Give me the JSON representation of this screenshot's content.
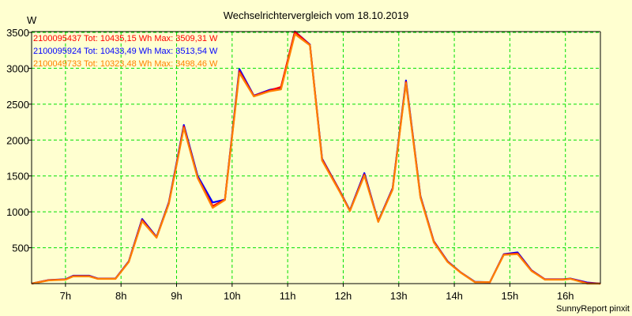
{
  "chart_data": {
    "type": "line",
    "title": "Wechselrichtervergleich vom 18.10.2019",
    "ylabel": "W",
    "xlabel": "",
    "footer": "SunnyReport pinxit",
    "ylim": [
      0,
      3500
    ],
    "xlim": [
      6.39,
      16.63
    ],
    "grid": true,
    "legend_position": "top-left",
    "yticks": [
      500,
      1000,
      1500,
      2000,
      2500,
      3000,
      3500
    ],
    "ytick_labels": [
      "500",
      "1000",
      "1500",
      "2000",
      "2500",
      "3000",
      "3500"
    ],
    "xticks": [
      7,
      8,
      9,
      10,
      11,
      12,
      13,
      14,
      15,
      16
    ],
    "xtick_labels": [
      "7h",
      "8h",
      "9h",
      "10h",
      "11h",
      "12h",
      "13h",
      "14h",
      "15h",
      "16h"
    ],
    "x": [
      6.39,
      6.7,
      7.0,
      7.14,
      7.43,
      7.58,
      7.9,
      8.14,
      8.38,
      8.64,
      8.86,
      9.01,
      9.13,
      9.38,
      9.65,
      9.87,
      10.13,
      10.39,
      10.68,
      10.88,
      11.13,
      11.4,
      11.62,
      11.94,
      12.12,
      12.38,
      12.63,
      12.89,
      13.13,
      13.39,
      13.63,
      13.88,
      14.11,
      14.37,
      14.64,
      14.89,
      15.14,
      15.39,
      15.63,
      15.96,
      16.09,
      16.39,
      16.63
    ],
    "series": [
      {
        "name": "2100095924",
        "legend": "2100095924 Tot: 10433,49 Wh Max: 3513,54 W",
        "color": "#0000ff",
        "values": [
          0,
          50,
          60,
          110,
          110,
          70,
          70,
          310,
          900,
          650,
          1130,
          1720,
          2210,
          1500,
          1130,
          1170,
          2990,
          2620,
          2700,
          2730,
          3513,
          3330,
          1740,
          1290,
          1020,
          1540,
          870,
          1330,
          2830,
          1220,
          590,
          310,
          160,
          25,
          20,
          410,
          435,
          185,
          60,
          60,
          70,
          15,
          0
        ]
      },
      {
        "name": "2100095437",
        "legend": "2100095437 Tot: 10435,15 Wh Max: 3509,31 W",
        "color": "#ff0000",
        "values": [
          0,
          48,
          58,
          105,
          105,
          68,
          68,
          305,
          885,
          645,
          1120,
          1700,
          2190,
          1480,
          1080,
          1170,
          2960,
          2615,
          2690,
          2740,
          3509,
          3325,
          1730,
          1285,
          1015,
          1520,
          865,
          1320,
          2810,
          1210,
          585,
          305,
          158,
          22,
          20,
          405,
          420,
          180,
          58,
          58,
          68,
          8,
          0
        ]
      },
      {
        "name": "2100049733",
        "legend": "2100049733 Tot: 10323,48 Wh Max: 3498,46 W",
        "color": "#ff8000",
        "values": [
          0,
          45,
          55,
          100,
          100,
          66,
          66,
          300,
          870,
          640,
          1110,
          1690,
          2170,
          1470,
          1055,
          1165,
          2935,
          2607,
          2680,
          2705,
          3475,
          3320,
          1715,
          1275,
          1010,
          1505,
          860,
          1310,
          2795,
          1200,
          575,
          300,
          155,
          20,
          20,
          400,
          410,
          175,
          55,
          55,
          66,
          0,
          0
        ]
      }
    ],
    "legend_order": [
      1,
      0,
      2
    ]
  },
  "colors": {
    "background": "#ffffd0",
    "grid": "#00e000",
    "axis": "#000000"
  }
}
